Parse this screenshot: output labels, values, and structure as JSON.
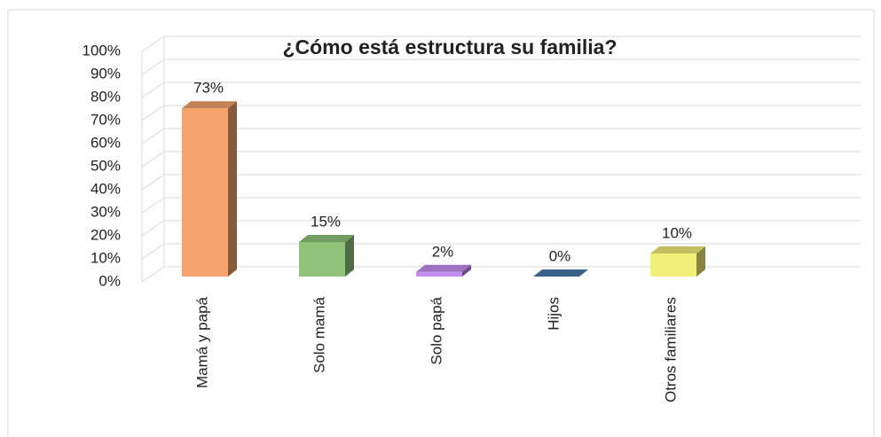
{
  "chart_data": {
    "type": "bar3d",
    "title": "¿Cómo está estructura su familia?",
    "categories": [
      "Mamá y papá",
      "Solo mamá",
      "Solo papá",
      "Hijos",
      "Otros familiares"
    ],
    "values": [
      73,
      15,
      2,
      0,
      10
    ],
    "value_labels": [
      "73%",
      "15%",
      "2%",
      "0%",
      "10%"
    ],
    "colors": [
      "#f4a46c",
      "#8fc47a",
      "#c48cf0",
      "#4a7aab",
      "#f2f07a"
    ],
    "ylim": [
      0,
      100
    ],
    "yticks": [
      {
        "value": 0,
        "label": "0%"
      },
      {
        "value": 10,
        "label": "10%"
      },
      {
        "value": 20,
        "label": "20%"
      },
      {
        "value": 30,
        "label": "30%"
      },
      {
        "value": 40,
        "label": "40%"
      },
      {
        "value": 50,
        "label": "50%"
      },
      {
        "value": 60,
        "label": "60%"
      },
      {
        "value": 70,
        "label": "70%"
      },
      {
        "value": 80,
        "label": "80%"
      },
      {
        "value": 90,
        "label": "90%"
      },
      {
        "value": 100,
        "label": "100%"
      }
    ],
    "grid": true
  }
}
